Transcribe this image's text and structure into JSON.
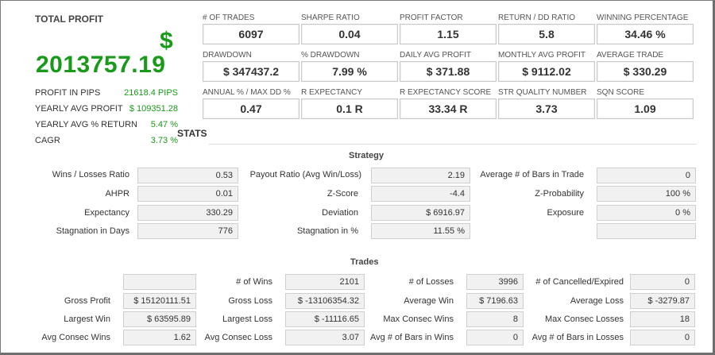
{
  "profit_panel": {
    "label": "TOTAL PROFIT",
    "currency": "$",
    "total": "2013757.19",
    "rows": [
      {
        "label": "PROFIT IN PIPS",
        "value": "21618.4 PIPS"
      },
      {
        "label": "YEARLY AVG PROFIT",
        "value": "$ 109351.28"
      },
      {
        "label": "YEARLY AVG % RETURN",
        "value": "5.47 %"
      },
      {
        "label": "CAGR",
        "value": "3.73 %"
      }
    ]
  },
  "metrics": [
    {
      "label": "# OF TRADES",
      "value": "6097"
    },
    {
      "label": "SHARPE RATIO",
      "value": "0.04"
    },
    {
      "label": "PROFIT FACTOR",
      "value": "1.15"
    },
    {
      "label": "RETURN / DD RATIO",
      "value": "5.8"
    },
    {
      "label": "WINNING PERCENTAGE",
      "value": "34.46 %"
    },
    {
      "label": "DRAWDOWN",
      "value": "$ 347437.2"
    },
    {
      "label": "% DRAWDOWN",
      "value": "7.99 %"
    },
    {
      "label": "DAILY AVG PROFIT",
      "value": "$ 371.88"
    },
    {
      "label": "MONTHLY AVG PROFIT",
      "value": "$ 9112.02"
    },
    {
      "label": "AVERAGE TRADE",
      "value": "$ 330.29"
    },
    {
      "label": "ANNUAL % / MAX DD %",
      "value": "0.47"
    },
    {
      "label": "R EXPECTANCY",
      "value": "0.1 R"
    },
    {
      "label": "R EXPECTANCY SCORE",
      "value": "33.34 R"
    },
    {
      "label": "STR QUALITY NUMBER",
      "value": "3.73"
    },
    {
      "label": "SQN SCORE",
      "value": "1.09"
    }
  ],
  "stats_title": "STATS",
  "strategy": {
    "title": "Strategy",
    "rows": [
      [
        {
          "label": "Wins / Losses Ratio",
          "value": "0.53"
        },
        {
          "label": "Payout Ratio (Avg Win/Loss)",
          "value": "2.19"
        },
        {
          "label": "Average # of Bars in Trade",
          "value": "0"
        }
      ],
      [
        {
          "label": "AHPR",
          "value": "0.01"
        },
        {
          "label": "Z-Score",
          "value": "-4.4"
        },
        {
          "label": "Z-Probability",
          "value": "100 %"
        }
      ],
      [
        {
          "label": "Expectancy",
          "value": "330.29"
        },
        {
          "label": "Deviation",
          "value": "$ 6916.97"
        },
        {
          "label": "Exposure",
          "value": "0 %"
        }
      ],
      [
        {
          "label": "Stagnation in Days",
          "value": "776"
        },
        {
          "label": "Stagnation in %",
          "value": "11.55 %"
        },
        {
          "label": "",
          "value": ""
        }
      ]
    ]
  },
  "trades": {
    "title": "Trades",
    "rows": [
      [
        {
          "label": "",
          "value": ""
        },
        {
          "label": "# of Wins",
          "value": "2101"
        },
        {
          "label": "# of Losses",
          "value": "3996"
        },
        {
          "label": "# of Cancelled/Expired",
          "value": "0"
        }
      ],
      [
        {
          "label": "Gross Profit",
          "value": "$ 15120111.51"
        },
        {
          "label": "Gross Loss",
          "value": "$ -13106354.32"
        },
        {
          "label": "Average Win",
          "value": "$ 7196.63"
        },
        {
          "label": "Average Loss",
          "value": "$ -3279.87"
        }
      ],
      [
        {
          "label": "Largest Win",
          "value": "$ 63595.89"
        },
        {
          "label": "Largest Loss",
          "value": "$ -11116.65"
        },
        {
          "label": "Max Consec Wins",
          "value": "8"
        },
        {
          "label": "Max Consec Losses",
          "value": "18"
        }
      ],
      [
        {
          "label": "Avg Consec Wins",
          "value": "1.62"
        },
        {
          "label": "Avg Consec Loss",
          "value": "3.07"
        },
        {
          "label": "Avg # of Bars in Wins",
          "value": "0"
        },
        {
          "label": "Avg # of Bars in Losses",
          "value": "0"
        }
      ]
    ]
  },
  "colors": {
    "profit_green": "#1a9a1a"
  }
}
